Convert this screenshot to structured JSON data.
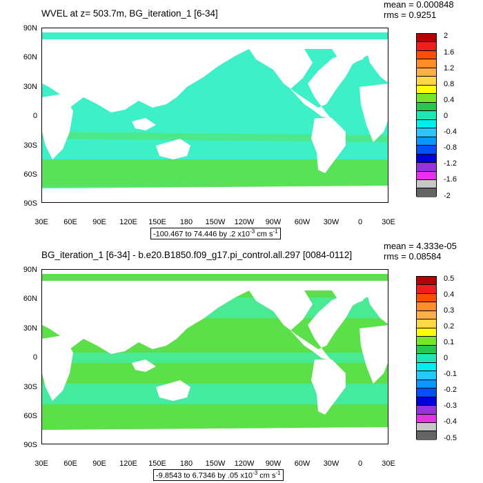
{
  "panels": [
    {
      "title": "WVEL at z= 503.7m, BG_iteration_1 [6-34]",
      "mean": "mean = 0.000848",
      "rms": "rms = 0.9251",
      "range_text": "-100.467 to 74.446 by .2 x10",
      "range_exp": "-3",
      "range_unit": " cm s",
      "range_unit_exp": "-1",
      "colorbar_labels": [
        "2",
        "1.6",
        "1.2",
        "0.8",
        "0.4",
        "0",
        "-0.4",
        "-0.8",
        "-1.2",
        "-1.6",
        "-2"
      ]
    },
    {
      "title": "BG_iteration_1 [6-34] - b.e20.B1850.f09_g17.pi_control.all.297 [0084-0112]",
      "mean": "mean = 4.333e-05",
      "rms": "rms = 0.08584",
      "range_text": "-9.8543 to 6.7346 by .05 x10",
      "range_exp": "-3",
      "range_unit": " cm s",
      "range_unit_exp": "-1",
      "colorbar_labels": [
        "0.5",
        "0.4",
        "0.3",
        "0.2",
        "0.1",
        "0",
        "-0.1",
        "-0.2",
        "-0.3",
        "-0.4",
        "-0.5"
      ]
    }
  ],
  "lat_labels": [
    "90N",
    "60N",
    "30N",
    "0",
    "30S",
    "60S",
    "90S"
  ],
  "lon_labels": [
    "30E",
    "60E",
    "90E",
    "120E",
    "150E",
    "180",
    "150W",
    "120W",
    "90W",
    "60W",
    "30W",
    "0",
    "30E"
  ],
  "colorbar_colors": [
    "#b40000",
    "#f01e1e",
    "#ff5000",
    "#ff8c28",
    "#ffaf46",
    "#ffd746",
    "#ffff00",
    "#78e628",
    "#28c850",
    "#1ee6b4",
    "#00f0f0",
    "#28c8ff",
    "#0a96ff",
    "#0050ff",
    "#0000dc",
    "#9632dc",
    "#e632e6",
    "#c8c8c8",
    "#646464"
  ],
  "map_colors": {
    "ocean_primary": "#3df0c8",
    "ocean_secondary": "#5ce04a",
    "land": "#ffffff"
  }
}
